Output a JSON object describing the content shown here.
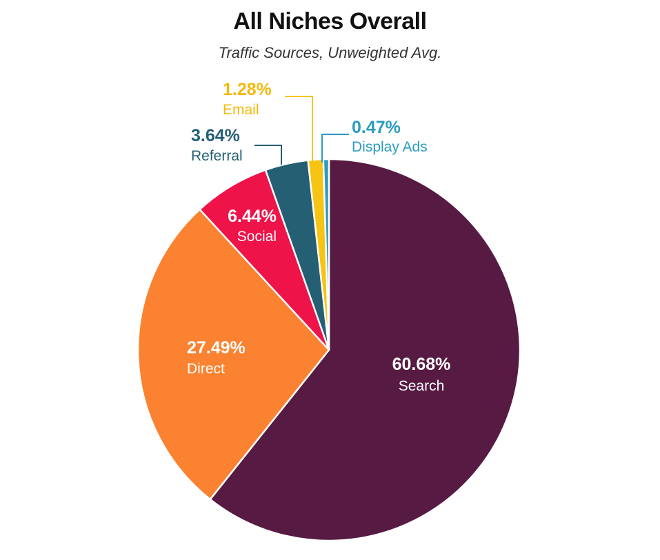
{
  "chart_data": {
    "type": "pie",
    "title": "All Niches Overall",
    "subtitle": "Traffic Sources, Unweighted Avg.",
    "slices": [
      {
        "label": "Search",
        "value": 60.68,
        "display": "60.68%",
        "color": "#561a43",
        "label_color": "#ffffff"
      },
      {
        "label": "Direct",
        "value": 27.49,
        "display": "27.49%",
        "color": "#fa8231",
        "label_color": "#ffffff"
      },
      {
        "label": "Social",
        "value": 6.44,
        "display": "6.44%",
        "color": "#ee1349",
        "label_color": "#ffffff"
      },
      {
        "label": "Referral",
        "value": 3.64,
        "display": "3.64%",
        "color": "#245f73",
        "label_color": "#245f73"
      },
      {
        "label": "Email",
        "value": 1.28,
        "display": "1.28%",
        "color": "#f6c413",
        "label_color": "#f4b90c"
      },
      {
        "label": "Display Ads",
        "value": 0.47,
        "display": "0.47%",
        "color": "#2a9cbf",
        "label_color": "#2a9cbf"
      }
    ],
    "start_angle": "12 o'clock",
    "direction": "clockwise"
  }
}
